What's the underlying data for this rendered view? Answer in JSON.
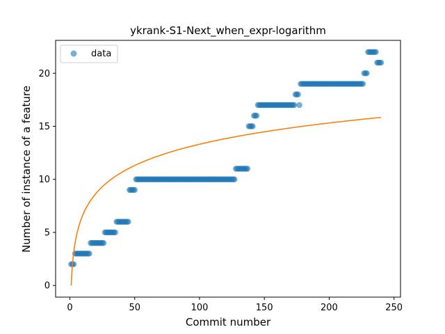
{
  "chart_data": {
    "type": "scatter",
    "title": "ykrank-S1-Next_when_expr-logarithm",
    "xlabel": "Commit number",
    "ylabel": "Number of instance of a feature",
    "xlim": [
      -11,
      255
    ],
    "ylim": [
      -1.1,
      23.1
    ],
    "x_ticks": [
      0,
      50,
      100,
      150,
      200,
      250
    ],
    "y_ticks": [
      0,
      5,
      10,
      15,
      20
    ],
    "legend": {
      "position": "top-left",
      "entries": [
        "data"
      ]
    },
    "grid": false,
    "colors": {
      "data": "#1f77b4",
      "fit": "#ff7f0e"
    },
    "series": [
      {
        "name": "data",
        "kind": "points",
        "runs": [
          {
            "x_start": 1,
            "x_end": 3,
            "y": 2
          },
          {
            "x_start": 4,
            "x_end": 15,
            "y": 3
          },
          {
            "x_start": 16,
            "x_end": 26,
            "y": 4
          },
          {
            "x_start": 27,
            "x_end": 35,
            "y": 5
          },
          {
            "x_start": 36,
            "x_end": 45,
            "y": 6
          },
          {
            "x_start": 46,
            "x_end": 50,
            "y": 9
          },
          {
            "x_start": 51,
            "x_end": 127,
            "y": 10
          },
          {
            "x_start": 128,
            "x_end": 137,
            "y": 11
          },
          {
            "x_start": 138,
            "x_end": 141,
            "y": 15
          },
          {
            "x_start": 142,
            "x_end": 144,
            "y": 16
          },
          {
            "x_start": 145,
            "x_end": 173,
            "y": 17
          },
          {
            "x_start": 174,
            "x_end": 176,
            "y": 18
          },
          {
            "x_start": 177,
            "x_end": 177,
            "y": 17
          },
          {
            "x_start": 178,
            "x_end": 226,
            "y": 19
          },
          {
            "x_start": 227,
            "x_end": 229,
            "y": 20
          },
          {
            "x_start": 230,
            "x_end": 236,
            "y": 22
          },
          {
            "x_start": 237,
            "x_end": 240,
            "y": 21
          }
        ]
      },
      {
        "name": "",
        "kind": "line",
        "function": "log",
        "a": 2.89,
        "x_range": [
          1,
          240
        ]
      }
    ]
  }
}
